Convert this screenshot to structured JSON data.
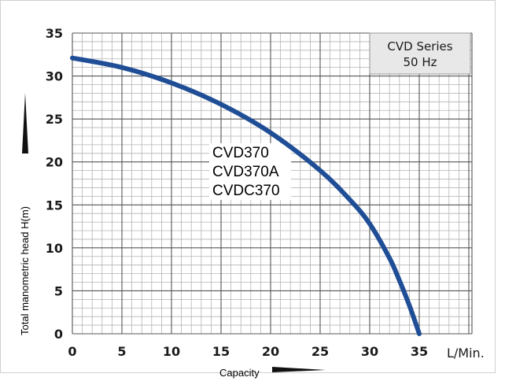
{
  "chart_data": {
    "type": "line",
    "title": "",
    "xlabel": "Capacity",
    "ylabel": "Total manometric head H(m)",
    "x_unit": "L/Min.",
    "xlim": [
      0,
      35
    ],
    "ylim": [
      0,
      35
    ],
    "x_ticks": [
      "0",
      "5",
      "10",
      "15",
      "20",
      "25",
      "30",
      "35"
    ],
    "y_ticks": [
      "0",
      "5",
      "10",
      "15",
      "20",
      "25",
      "30",
      "35"
    ],
    "grid": true,
    "info_box": {
      "line1": "CVD Series",
      "line2": "50 Hz"
    },
    "models": [
      "CVD370",
      "CVD370A",
      "CVDC370"
    ],
    "series": [
      {
        "name": "CVD370 / CVD370A / CVDC370",
        "color": "#1f4e96",
        "x": [
          0,
          5,
          10,
          15,
          20,
          25,
          28,
          30,
          32,
          33,
          34,
          35
        ],
        "y": [
          32.1,
          31.0,
          29.2,
          26.7,
          23.4,
          19.0,
          15.6,
          12.8,
          8.8,
          6.2,
          3.3,
          0
        ]
      }
    ]
  }
}
